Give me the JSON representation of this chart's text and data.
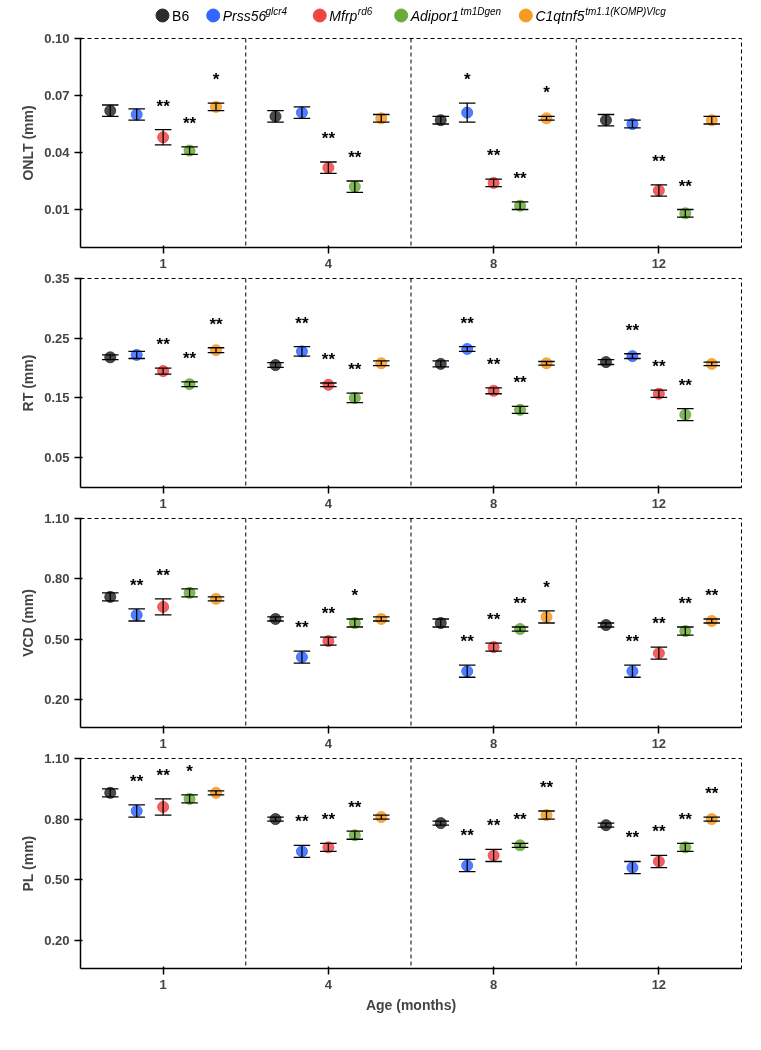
{
  "chart_data": [
    {
      "type": "scatter",
      "ylabel": "ONLT (mm)",
      "categories": [
        "1",
        "4",
        "8",
        "12"
      ],
      "ylim": [
        -0.01,
        0.1
      ],
      "yticks": [
        0.01,
        0.04,
        0.07,
        {
          "value": 0.1,
          "label": "0.10"
        }
      ],
      "marker": "circle",
      "grid": "x",
      "legend": "top",
      "series": [
        {
          "name": "B6",
          "color": "#2b2b2b",
          "values": [
            0.062,
            0.059,
            0.057,
            0.057
          ],
          "errors": [
            0.003,
            0.003,
            0.002,
            0.003
          ],
          "value_labels": [
            null,
            null,
            null,
            null
          ]
        },
        {
          "name": "Prss56$^{glcr4}$",
          "color": "#3366ff",
          "values": [
            0.06,
            0.061,
            0.061,
            0.055
          ],
          "errors": [
            0.003,
            0.003,
            0.005,
            0.002
          ],
          "value_labels": [
            null,
            null,
            "*",
            null
          ]
        },
        {
          "name": "Mfrp$^{rd6}$",
          "color": "#f04545",
          "values": [
            0.048,
            0.032,
            0.024,
            0.02
          ],
          "errors": [
            0.004,
            0.003,
            0.002,
            0.003
          ],
          "value_labels": [
            "**",
            "**",
            "**",
            "**"
          ]
        },
        {
          "name": "Adipor1$^{tm1Dgen}$",
          "color": "#6aaa3a",
          "values": [
            0.041,
            0.022,
            0.012,
            0.008
          ],
          "errors": [
            0.002,
            0.003,
            0.002,
            0.002
          ],
          "value_labels": [
            "**",
            "**",
            "**",
            "**"
          ]
        },
        {
          "name": "C1qtnf5$^{tm1.1(KOMP)Vlcg}$",
          "color": "#f59a23",
          "values": [
            0.064,
            0.058,
            0.058,
            0.057
          ],
          "errors": [
            0.002,
            0.002,
            0.001,
            0.002
          ],
          "value_labels": [
            "*",
            null,
            "*",
            null
          ]
        }
      ]
    },
    {
      "type": "scatter",
      "ylabel": "RT (mm)",
      "categories": [
        "1",
        "4",
        "8",
        "12"
      ],
      "ylim": [
        0.0,
        0.35
      ],
      "yticks": [
        0.05,
        0.15,
        0.25,
        0.35
      ],
      "marker": "circle",
      "grid": "x",
      "series": [
        {
          "color": "#2b2b2b",
          "values": [
            0.218,
            0.205,
            0.207,
            0.21
          ],
          "errors": [
            0.004,
            0.004,
            0.005,
            0.004
          ],
          "value_labels": [
            null,
            null,
            null,
            null
          ]
        },
        {
          "color": "#3366ff",
          "values": [
            0.222,
            0.228,
            0.232,
            0.22
          ],
          "errors": [
            0.006,
            0.008,
            0.004,
            0.004
          ],
          "value_labels": [
            null,
            "**",
            "**",
            "**"
          ]
        },
        {
          "color": "#f04545",
          "values": [
            0.195,
            0.172,
            0.162,
            0.157
          ],
          "errors": [
            0.005,
            0.003,
            0.005,
            0.006
          ],
          "value_labels": [
            "**",
            "**",
            "**",
            "**"
          ]
        },
        {
          "color": "#6aaa3a",
          "values": [
            0.173,
            0.15,
            0.13,
            0.122
          ],
          "errors": [
            0.004,
            0.008,
            0.006,
            0.01
          ],
          "value_labels": [
            "**",
            "**",
            "**",
            "**"
          ]
        },
        {
          "color": "#f59a23",
          "values": [
            0.23,
            0.208,
            0.208,
            0.207
          ],
          "errors": [
            0.004,
            0.004,
            0.003,
            0.003
          ],
          "value_labels": [
            "**",
            null,
            null,
            null
          ]
        }
      ]
    },
    {
      "type": "scatter",
      "ylabel": "VCD (mm)",
      "categories": [
        "1",
        "4",
        "8",
        "12"
      ],
      "ylim": [
        0.06,
        1.1
      ],
      "yticks": [
        {
          "value": 0.2,
          "label": "0.20"
        },
        {
          "value": 0.5,
          "label": "0.50"
        },
        {
          "value": 0.8,
          "label": "0.80"
        },
        {
          "value": 1.1,
          "label": "1.10"
        }
      ],
      "marker": "circle",
      "grid": "x",
      "series": [
        {
          "color": "#2b2b2b",
          "values": [
            0.71,
            0.6,
            0.58,
            0.57
          ],
          "errors": [
            0.02,
            0.01,
            0.02,
            0.01
          ],
          "value_labels": [
            null,
            null,
            null,
            null
          ]
        },
        {
          "color": "#3366ff",
          "values": [
            0.62,
            0.41,
            0.34,
            0.34
          ],
          "errors": [
            0.03,
            0.03,
            0.03,
            0.03
          ],
          "value_labels": [
            "**",
            "**",
            "**",
            "**"
          ]
        },
        {
          "color": "#f04545",
          "values": [
            0.66,
            0.49,
            0.46,
            0.43
          ],
          "errors": [
            0.04,
            0.02,
            0.02,
            0.03
          ],
          "value_labels": [
            "**",
            "**",
            "**",
            "**"
          ]
        },
        {
          "color": "#6aaa3a",
          "values": [
            0.73,
            0.58,
            0.55,
            0.54
          ],
          "errors": [
            0.02,
            0.02,
            0.01,
            0.02
          ],
          "value_labels": [
            null,
            "*",
            "**",
            "**"
          ]
        },
        {
          "color": "#f59a23",
          "values": [
            0.7,
            0.6,
            0.61,
            0.59
          ],
          "errors": [
            0.01,
            0.01,
            0.03,
            0.01
          ],
          "value_labels": [
            null,
            null,
            "*",
            "**"
          ]
        }
      ]
    },
    {
      "type": "scatter",
      "ylabel": "PL (mm)",
      "xlabel": "Age (months)",
      "categories": [
        "1",
        "4",
        "8",
        "12"
      ],
      "ylim": [
        0.06,
        1.1
      ],
      "yticks": [
        {
          "value": 0.2,
          "label": "0.20"
        },
        {
          "value": 0.5,
          "label": "0.50"
        },
        {
          "value": 0.8,
          "label": "0.80"
        },
        {
          "value": 1.1,
          "label": "1.10"
        }
      ],
      "marker": "circle",
      "grid": "x",
      "series": [
        {
          "color": "#2b2b2b",
          "values": [
            0.93,
            0.8,
            0.78,
            0.77
          ],
          "errors": [
            0.02,
            0.01,
            0.01,
            0.01
          ],
          "value_labels": [
            null,
            null,
            null,
            null
          ]
        },
        {
          "color": "#3366ff",
          "values": [
            0.84,
            0.64,
            0.57,
            0.56
          ],
          "errors": [
            0.03,
            0.03,
            0.03,
            0.03
          ],
          "value_labels": [
            "**",
            "**",
            "**",
            "**"
          ]
        },
        {
          "color": "#f04545",
          "values": [
            0.86,
            0.66,
            0.62,
            0.59
          ],
          "errors": [
            0.04,
            0.02,
            0.03,
            0.03
          ],
          "value_labels": [
            "**",
            "**",
            "**",
            "**"
          ]
        },
        {
          "color": "#6aaa3a",
          "values": [
            0.9,
            0.72,
            0.67,
            0.66
          ],
          "errors": [
            0.02,
            0.02,
            0.01,
            0.02
          ],
          "value_labels": [
            "*",
            "**",
            "**",
            "**"
          ]
        },
        {
          "color": "#f59a23",
          "values": [
            0.93,
            0.81,
            0.82,
            0.8
          ],
          "errors": [
            0.01,
            0.01,
            0.02,
            0.01
          ],
          "value_labels": [
            null,
            null,
            "**",
            "**"
          ]
        }
      ]
    }
  ]
}
